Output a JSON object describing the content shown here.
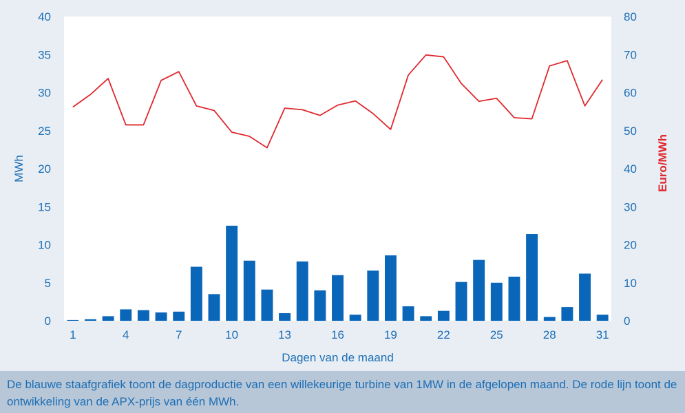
{
  "chart_data": {
    "type": "bar+line",
    "x": [
      1,
      2,
      3,
      4,
      5,
      6,
      7,
      8,
      9,
      10,
      11,
      12,
      13,
      14,
      15,
      16,
      17,
      18,
      19,
      20,
      21,
      22,
      23,
      24,
      25,
      26,
      27,
      28,
      29,
      30,
      31
    ],
    "x_tick_labels": [
      "1",
      "4",
      "7",
      "10",
      "13",
      "16",
      "19",
      "22",
      "25",
      "28",
      "31"
    ],
    "xlabel": "Dagen van de maand",
    "y_left": {
      "label": "MWh",
      "lim": [
        0,
        40
      ],
      "ticks": [
        "0",
        "5",
        "10",
        "15",
        "20",
        "25",
        "30",
        "35",
        "40"
      ]
    },
    "y_right": {
      "label": "Euro/MWh",
      "lim": [
        0,
        80
      ],
      "ticks": [
        "0",
        "10",
        "20",
        "30",
        "40",
        "50",
        "60",
        "70",
        "80"
      ]
    },
    "series": [
      {
        "kind": "bar",
        "axis": "left",
        "color": "#0a66b8",
        "values": [
          0.1,
          0.2,
          0.6,
          1.5,
          1.4,
          1.1,
          1.2,
          7.1,
          3.5,
          12.5,
          7.9,
          4.1,
          1.0,
          7.8,
          4.0,
          6.0,
          0.8,
          6.6,
          8.6,
          1.9,
          0.6,
          1.3,
          5.1,
          8.0,
          5.0,
          5.8,
          11.4,
          0.5,
          1.8,
          6.2,
          0.8
        ]
      },
      {
        "kind": "line",
        "axis": "right",
        "color": "#e0282e",
        "values": [
          56.2,
          59.5,
          63.7,
          51.5,
          51.5,
          63.2,
          65.5,
          56.5,
          55.3,
          49.6,
          48.5,
          45.5,
          55.9,
          55.5,
          54.0,
          56.7,
          57.8,
          54.5,
          50.3,
          64.6,
          69.9,
          69.4,
          62.4,
          57.7,
          58.5,
          53.4,
          53.1,
          67.0,
          68.4,
          56.5,
          63.4
        ]
      }
    ],
    "grid": false
  },
  "caption": "De blauwe staafgrafiek toont de dagproductie van een willekeurige turbine van 1MW in de afgelopen maand. De rode lijn toont de ontwikkeling van de APX-prijs van één MWh."
}
